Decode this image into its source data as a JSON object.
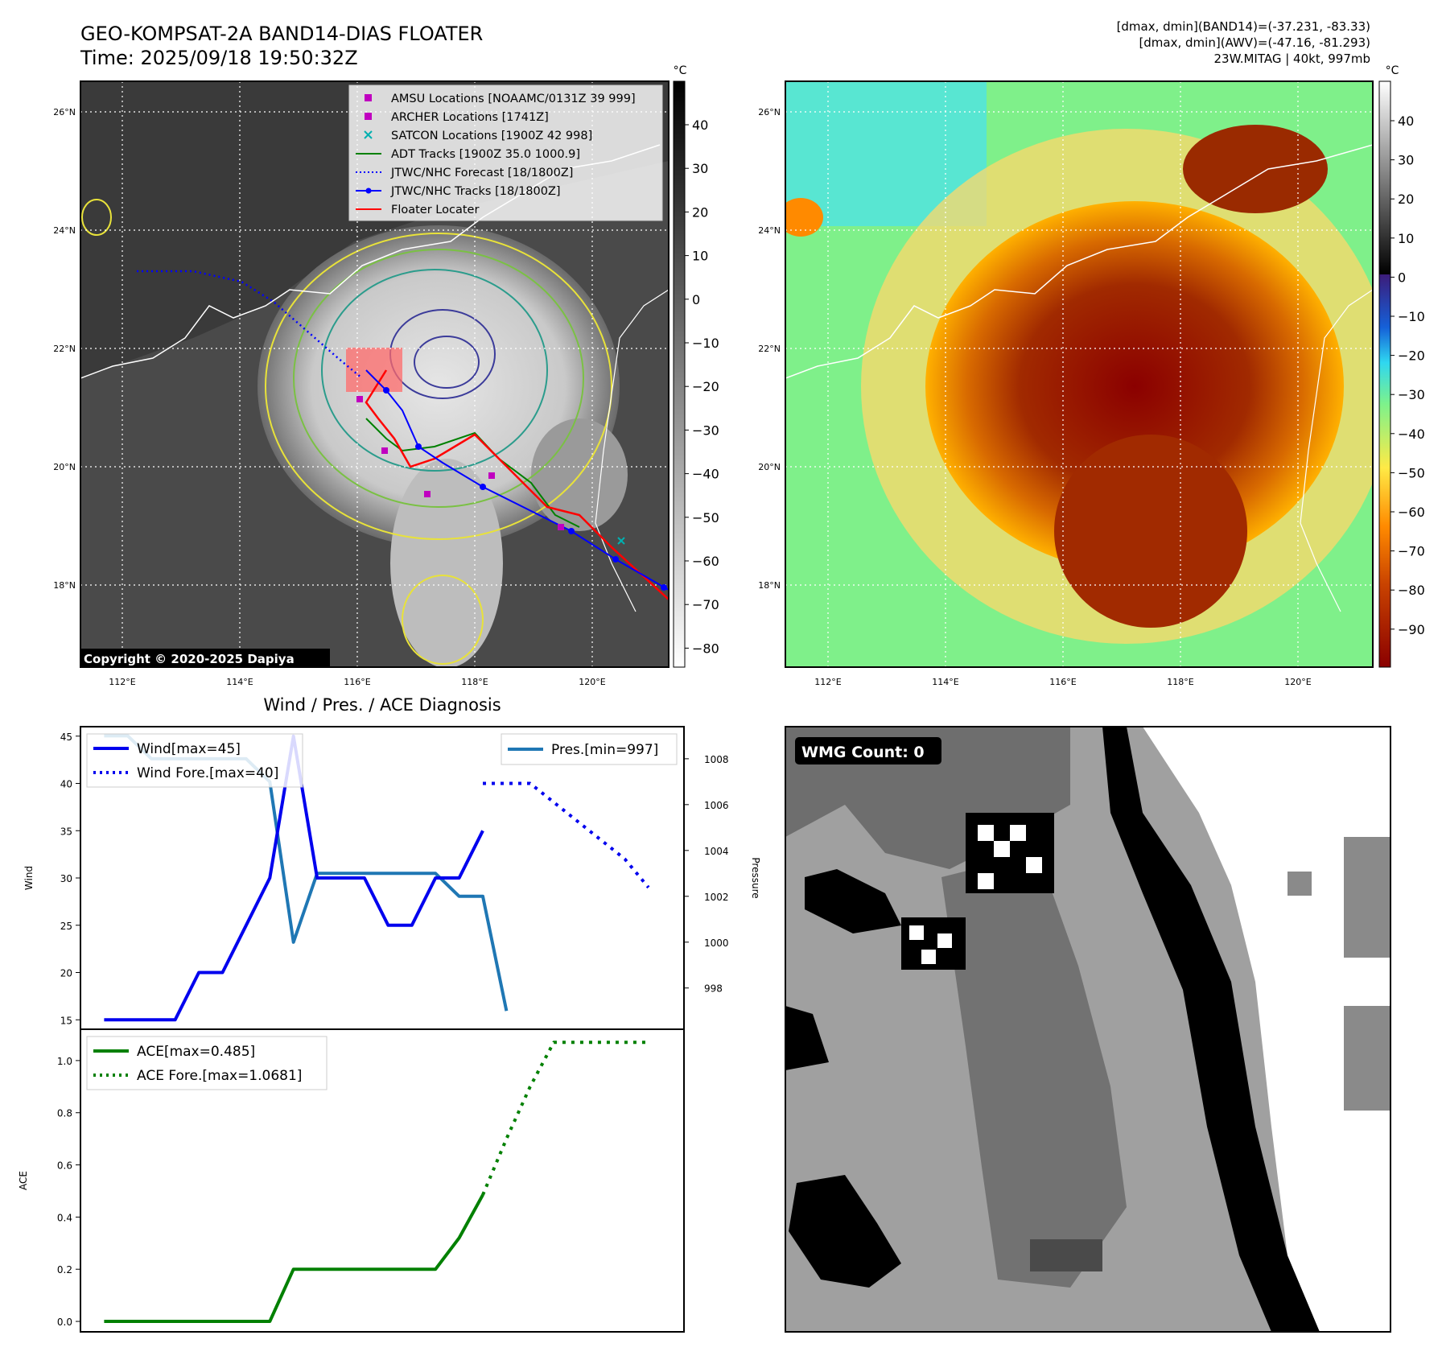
{
  "header": {
    "title_line1": "GEO-KOMPSAT-2A BAND14-DIAS FLOATER",
    "title_line2": "Time: 2025/09/18 19:50:32Z",
    "info_line1": "[dmax, dmin](BAND14)=(-37.231, -83.33)",
    "info_line2": "[dmax, dmin](AWV)=(-47.16, -81.293)",
    "info_line3": "23W.MITAG | 40kt, 997mb"
  },
  "map_left": {
    "copyright": "Copyright © 2020-2025 Dapiya",
    "unit": "°C",
    "lat_labels": [
      "26°N",
      "24°N",
      "22°N",
      "20°N",
      "18°N"
    ],
    "lon_labels": [
      "112°E",
      "114°E",
      "116°E",
      "118°E",
      "120°E"
    ],
    "colorbar_ticks": [
      "40",
      "30",
      "20",
      "10",
      "0",
      "−10",
      "−20",
      "−30",
      "−40",
      "−50",
      "−60",
      "−70",
      "−80"
    ],
    "legend": [
      {
        "label": "AMSU Locations [NOAAMC/0131Z 39 999]",
        "kind": "square",
        "color": "#c000c0"
      },
      {
        "label": "ARCHER Locations [1741Z]",
        "kind": "square",
        "color": "#c000c0"
      },
      {
        "label": "SATCON Locations [1900Z 42 998]",
        "kind": "x",
        "color": "#00b0b0"
      },
      {
        "label": "ADT Tracks [1900Z 35.0 1000.9]",
        "kind": "line",
        "color": "#008000"
      },
      {
        "label": "JTWC/NHC Forecast [18/1800Z]",
        "kind": "dotted",
        "color": "#0000ff"
      },
      {
        "label": "JTWC/NHC Tracks [18/1800Z]",
        "kind": "line-dot",
        "color": "#0000ff"
      },
      {
        "label": "Floater Locater",
        "kind": "line",
        "color": "#ff0000"
      }
    ]
  },
  "map_right": {
    "unit": "°C",
    "lat_labels": [
      "26°N",
      "24°N",
      "22°N",
      "20°N",
      "18°N"
    ],
    "lon_labels": [
      "112°E",
      "114°E",
      "116°E",
      "118°E",
      "120°E"
    ],
    "colorbar_ticks": [
      "40",
      "30",
      "20",
      "10",
      "0",
      "−10",
      "−20",
      "−30",
      "−40",
      "−50",
      "−60",
      "−70",
      "−80",
      "−90"
    ]
  },
  "wmg": {
    "label": "WMG Count: 0"
  },
  "chart_data": [
    {
      "type": "line",
      "title": "Wind / Pres. / ACE Diagnosis",
      "ylabel": "Wind",
      "ylabel_right": "Pressure",
      "x": [
        0,
        1,
        2,
        3,
        4,
        5,
        6,
        7,
        8,
        9,
        10,
        11,
        12,
        13,
        14,
        15,
        16,
        17,
        18,
        19,
        20,
        21,
        22,
        23
      ],
      "ylim": [
        14,
        46
      ],
      "ylim_right": [
        996.2,
        1009.4
      ],
      "yticks": [
        15,
        20,
        25,
        30,
        35,
        40,
        45
      ],
      "yticks_right": [
        998,
        1000,
        1002,
        1004,
        1006,
        1008
      ],
      "series": [
        {
          "name": "Wind[max=45]",
          "axis": "left",
          "color": "#0000ee",
          "style": "solid",
          "x": [
            0,
            1,
            2,
            3,
            4,
            5,
            6,
            7,
            8,
            9,
            10,
            11,
            12,
            13,
            14,
            15,
            16
          ],
          "values": [
            15,
            15,
            15,
            15,
            20,
            20,
            25,
            30,
            45,
            30,
            30,
            30,
            25,
            25,
            30,
            30,
            35
          ]
        },
        {
          "name": "Wind Fore.[max=40]",
          "axis": "left",
          "color": "#0000ee",
          "style": "dotted",
          "x": [
            16,
            17,
            18,
            19,
            20,
            21,
            22,
            23
          ],
          "values": [
            40,
            40,
            40,
            38,
            36,
            34,
            32,
            29
          ]
        },
        {
          "name": "Pres.[min=997]",
          "axis": "right",
          "color": "#1f77b4",
          "style": "solid",
          "x": [
            0,
            1,
            2,
            3,
            4,
            5,
            6,
            7,
            8,
            9,
            10,
            11,
            12,
            13,
            14,
            15,
            16,
            17
          ],
          "values": [
            1009,
            1009,
            1008,
            1008,
            1008,
            1008,
            1008,
            1007,
            1000,
            1003,
            1003,
            1003,
            1003,
            1003,
            1003,
            1002,
            1002,
            997
          ]
        }
      ]
    },
    {
      "type": "line",
      "ylabel": "ACE",
      "x": [
        0,
        1,
        2,
        3,
        4,
        5,
        6,
        7,
        8,
        9,
        10,
        11,
        12,
        13,
        14,
        15,
        16,
        17,
        18,
        19,
        20,
        21,
        22,
        23
      ],
      "ylim": [
        -0.04,
        1.12
      ],
      "yticks": [
        0.0,
        0.2,
        0.4,
        0.6,
        0.8,
        1.0
      ],
      "series": [
        {
          "name": "ACE[max=0.485]",
          "color": "#008000",
          "style": "solid",
          "x": [
            0,
            1,
            2,
            3,
            4,
            5,
            6,
            7,
            8,
            9,
            10,
            11,
            12,
            13,
            14,
            15,
            16
          ],
          "values": [
            0,
            0,
            0,
            0,
            0,
            0,
            0,
            0,
            0.2,
            0.2,
            0.2,
            0.2,
            0.2,
            0.2,
            0.2,
            0.32,
            0.485
          ]
        },
        {
          "name": "ACE Fore.[max=1.0681]",
          "color": "#008000",
          "style": "dotted",
          "x": [
            16,
            17,
            18,
            19,
            20,
            21,
            22,
            23
          ],
          "values": [
            0.485,
            0.7,
            0.9,
            1.07,
            1.07,
            1.07,
            1.07,
            1.07
          ]
        }
      ]
    }
  ]
}
